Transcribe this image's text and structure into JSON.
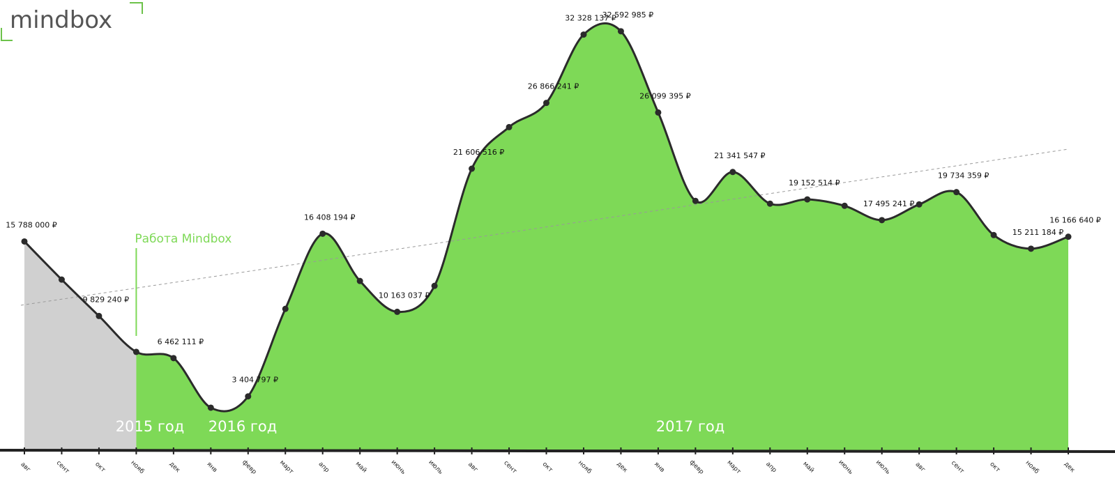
{
  "chart_data": {
    "type": "area",
    "logo": "mindbox",
    "annotation": "Работа Mindbox",
    "year_labels": [
      "2015 год",
      "2016 год",
      "2017 год"
    ],
    "categories": [
      "авг",
      "сент",
      "окт",
      "нояб",
      "дек",
      "янв",
      "февр",
      "март",
      "апр",
      "май",
      "июнь",
      "июль",
      "авг",
      "сент",
      "окт",
      "нояб",
      "дек",
      "янв",
      "февр",
      "март",
      "апр",
      "май",
      "июнь",
      "июль",
      "авг",
      "сент",
      "окт",
      "нояб",
      "дек"
    ],
    "values": [
      15788000,
      12740000,
      9829240,
      6960000,
      6462111,
      2500000,
      3404797,
      10400000,
      16408194,
      12630000,
      10163037,
      12240000,
      21606516,
      24930000,
      26866241,
      32328137,
      32592985,
      26099395,
      19030000,
      21341547,
      18810000,
      19152514,
      18640000,
      17495241,
      18750000,
      19734359,
      16300000,
      15211184,
      16166640
    ],
    "value_labels": [
      "15 788 000 ₽",
      null,
      "9 829 240 ₽",
      null,
      "6 462 111 ₽",
      null,
      "3 404 797 ₽",
      null,
      "16 408 194 ₽",
      null,
      "10 163 037 ₽",
      null,
      "21 606 516 ₽",
      null,
      "26 866 241 ₽",
      "32 328 137 ₽",
      "32 592 985 ₽",
      "26 099 395 ₽",
      null,
      "21 341 547 ₽",
      null,
      "19 152 514 ₽",
      null,
      "17 495 241 ₽",
      null,
      "19 734 359 ₽",
      null,
      "15 211 184 ₽",
      "16 166 640 ₽"
    ],
    "color": "#7ed957",
    "before_color": "#d0d0d0",
    "line_color": "#2b2b2b",
    "ylim": [
      -900000,
      34200000
    ]
  }
}
